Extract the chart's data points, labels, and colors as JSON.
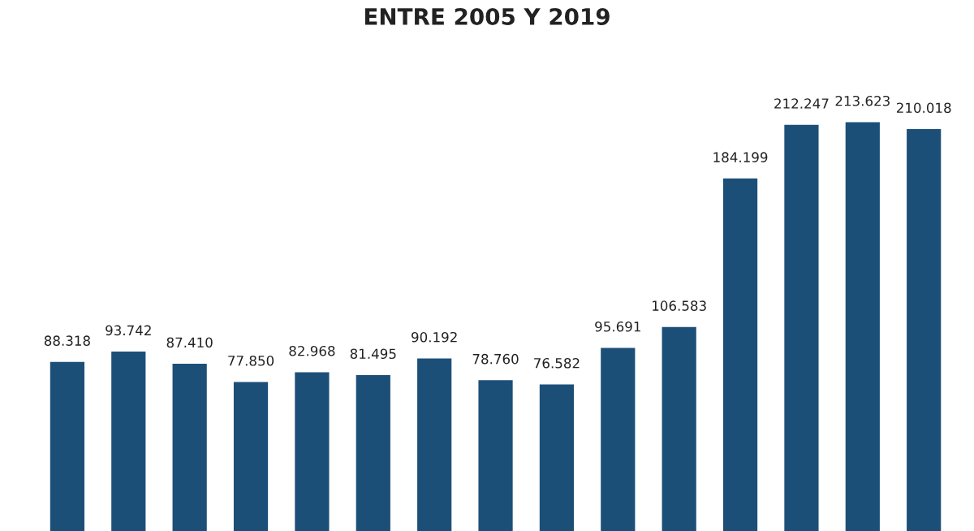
{
  "chart_data": {
    "type": "bar",
    "title": "ENTRE 2005 Y 2019",
    "categories": [
      null,
      null,
      null,
      null,
      null,
      null,
      null,
      null,
      null,
      null,
      null,
      null,
      null,
      null,
      null
    ],
    "values": [
      88318,
      93742,
      87410,
      77850,
      82968,
      81495,
      90192,
      78760,
      76582,
      95691,
      106583,
      184199,
      212247,
      213623,
      210018
    ],
    "value_labels": [
      "88.318",
      "93.742",
      "87.410",
      "77.850",
      "82.968",
      "81.495",
      "90.192",
      "78.760",
      "76.582",
      "95.691",
      "106.583",
      "184.199",
      "212.247",
      "213.623",
      "210.018"
    ],
    "color": "#1c4f78",
    "grid": false,
    "legend": false
  }
}
